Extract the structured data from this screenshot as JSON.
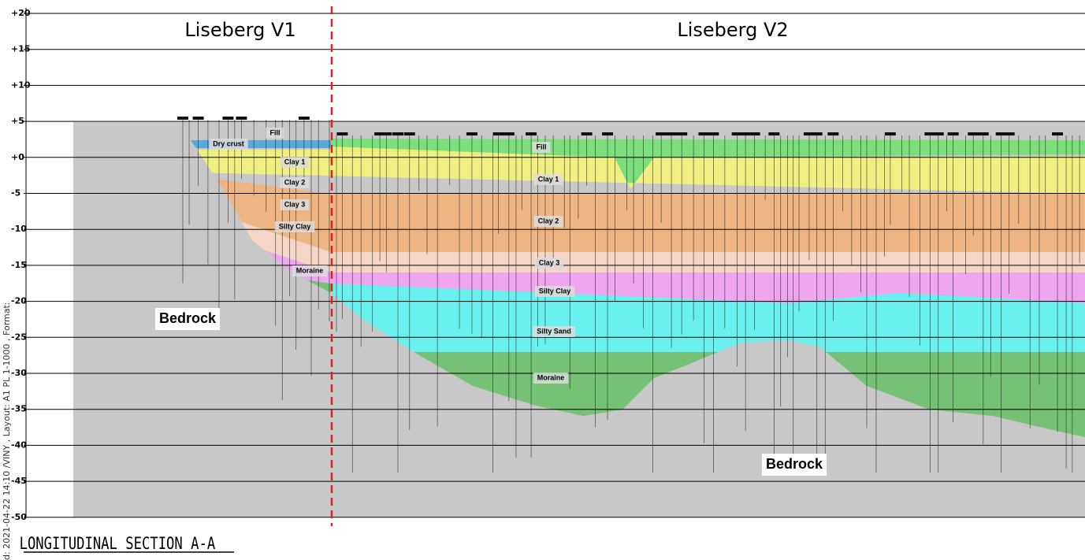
{
  "headers": {
    "left": "Liseberg V1",
    "right": "Liseberg V2"
  },
  "elevation_labels": [
    "+20",
    "+15",
    "+10",
    "+5",
    "+0",
    "-5",
    "-10",
    "-15",
    "-20",
    "-25",
    "-30",
    "-35",
    "-40",
    "-45",
    "-50"
  ],
  "layers_v1": [
    "Fill",
    "Dry crust",
    "Clay 1",
    "Clay 2",
    "Clay 3",
    "Silty Clay",
    "Moraine"
  ],
  "layers_v2": [
    "Fill",
    "Clay 1",
    "Clay 2",
    "Clay 3",
    "Silty Clay",
    "Silty Sand",
    "Moraine"
  ],
  "bedrock_labels": [
    "Bedrock",
    "Bedrock"
  ],
  "section_title": "LONGITUDINAL SECTION A-A",
  "plot_stamp": "d: 2021-04-22 14:10 /VINY , Layout: A1 PL 1-1000 , Format:"
}
